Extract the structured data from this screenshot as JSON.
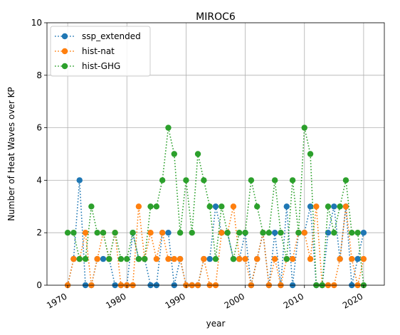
{
  "chart_data": {
    "type": "line",
    "title": "MIROC6",
    "xlabel": "year",
    "ylabel": "Number of Heat Waves over KP",
    "xlim": [
      1966.5,
      2023.5
    ],
    "ylim": [
      0,
      10
    ],
    "xticks": [
      1970,
      1980,
      1990,
      2000,
      2010,
      2020
    ],
    "yticks": [
      0,
      2,
      4,
      6,
      8,
      10
    ],
    "grid": true,
    "legend_position": "top-left",
    "x": [
      1970,
      1971,
      1972,
      1973,
      1974,
      1975,
      1976,
      1977,
      1978,
      1979,
      1980,
      1981,
      1982,
      1983,
      1984,
      1985,
      1986,
      1987,
      1988,
      1989,
      1990,
      1991,
      1992,
      1993,
      1994,
      1995,
      1996,
      1997,
      1998,
      1999,
      2000,
      2001,
      2002,
      2003,
      2004,
      2005,
      2006,
      2007,
      2008,
      2009,
      2010,
      2011,
      2012,
      2013,
      2014,
      2015,
      2016,
      2017,
      2018,
      2019,
      2020
    ],
    "series": [
      {
        "name": "ssp_extended",
        "color": "#1f77b4",
        "values": [
          0,
          1,
          4,
          0,
          0,
          1,
          1,
          1,
          0,
          0,
          0,
          2,
          1,
          1,
          0,
          0,
          2,
          2,
          0,
          1,
          0,
          0,
          0,
          1,
          1,
          3,
          2,
          2,
          1,
          1,
          2,
          0,
          1,
          2,
          0,
          2,
          0,
          3,
          0,
          2,
          2,
          3,
          0,
          0,
          2,
          3,
          1,
          3,
          0,
          1,
          2
        ]
      },
      {
        "name": "hist-nat",
        "color": "#ff7f0e",
        "values": [
          0,
          1,
          1,
          2,
          0,
          1,
          2,
          1,
          2,
          0,
          0,
          0,
          3,
          1,
          2,
          1,
          2,
          1,
          1,
          1,
          0,
          0,
          0,
          1,
          0,
          0,
          2,
          2,
          3,
          1,
          1,
          0,
          1,
          2,
          0,
          1,
          0,
          1,
          1,
          2,
          2,
          1,
          3,
          0,
          0,
          0,
          1,
          3,
          1,
          0,
          1
        ]
      },
      {
        "name": "hist-GHG",
        "color": "#2ca02c",
        "values": [
          2,
          2,
          1,
          1,
          3,
          2,
          2,
          1,
          2,
          1,
          1,
          2,
          1,
          1,
          3,
          3,
          4,
          6,
          5,
          2,
          4,
          2,
          5,
          4,
          3,
          1,
          3,
          2,
          1,
          2,
          2,
          4,
          3,
          2,
          2,
          4,
          2,
          1,
          4,
          2,
          6,
          5,
          0,
          0,
          3,
          2,
          3,
          4,
          2,
          2,
          0
        ]
      }
    ]
  }
}
